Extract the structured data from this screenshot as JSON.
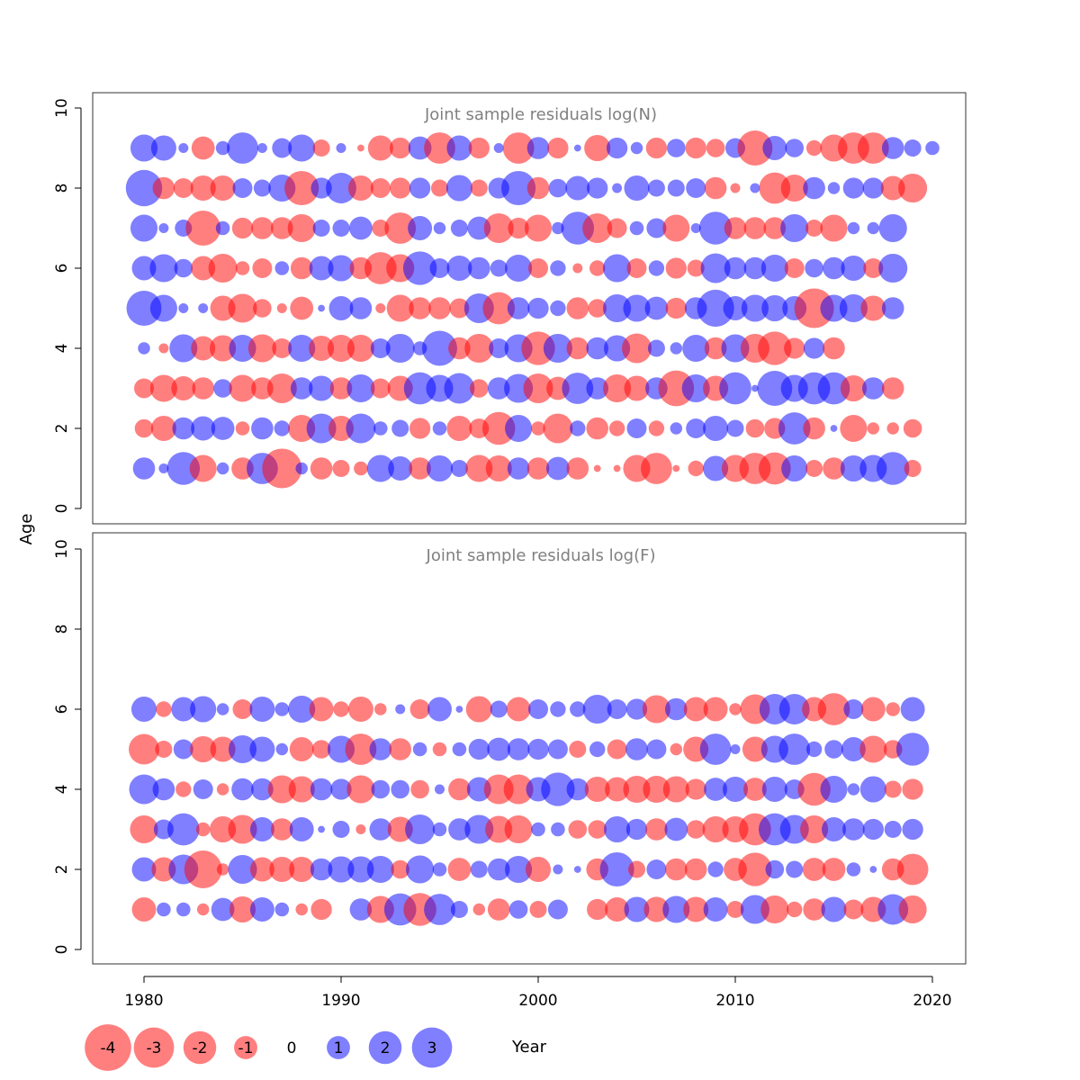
{
  "colors": {
    "negative": "#FF0000",
    "positive": "#0000FF",
    "bubble_opacity": 0.5,
    "title_color": "#808080"
  },
  "axis_labels": {
    "y": "Age",
    "x": "Year"
  },
  "x_ticks": [
    "1980",
    "1990",
    "2000",
    "2010",
    "2020"
  ],
  "y_ticks": [
    "0",
    "2",
    "4",
    "6",
    "8",
    "10"
  ],
  "legend": {
    "items": [
      {
        "label": "-4",
        "value": -4
      },
      {
        "label": "-3",
        "value": -3
      },
      {
        "label": "-2",
        "value": -2
      },
      {
        "label": "-1",
        "value": -1
      },
      {
        "label": "0",
        "value": 0
      },
      {
        "label": "1",
        "value": 1
      },
      {
        "label": "2",
        "value": 2
      },
      {
        "label": "3",
        "value": 3
      }
    ]
  },
  "chart_data": [
    {
      "type": "bubble",
      "title": "Joint sample residuals log(N)",
      "xlabel": "Year",
      "ylabel": "Age",
      "xlim": [
        1978,
        2021
      ],
      "ylim": [
        0,
        10
      ],
      "x_start": 1980,
      "ages": [
        1,
        2,
        3,
        4,
        5,
        6,
        7,
        8,
        9
      ],
      "residuals": [
        [
          1.0,
          0.2,
          2.2,
          -1.5,
          0.3,
          -1.0,
          2.0,
          -3.2,
          0.3,
          -1.0,
          -0.6,
          -0.4,
          1.5,
          1.2,
          -1.0,
          1.4,
          0.6,
          -1.5,
          -1.4,
          1.0,
          -1.0,
          1.1,
          -1.0,
          -0.1,
          -0.1,
          -1.5,
          -2.0,
          -0.1,
          -0.5,
          1.3,
          -1.5,
          -2.0,
          -2.1,
          1.4,
          -0.6,
          -1.0,
          1.4,
          1.5,
          2.2,
          -0.6
        ],
        [
          -0.7,
          -1.3,
          1.0,
          1.2,
          1.1,
          -0.4,
          1.0,
          0.5,
          -1.5,
          1.8,
          -1.3,
          1.8,
          0.4,
          0.6,
          -0.9,
          0.4,
          -1.3,
          -0.8,
          -2.2,
          1.5,
          -0.4,
          -1.8,
          0.5,
          -1.0,
          -0.5,
          0.8,
          -0.5,
          0.3,
          0.8,
          1.3,
          0.6,
          -0.7,
          -0.9,
          2.1,
          -1.0,
          0.1,
          -1.5,
          -0.3,
          -0.3,
          -0.7
        ],
        [
          -0.8,
          -1.5,
          -1.2,
          -1.0,
          0.7,
          -1.5,
          -1.0,
          -1.8,
          1.0,
          1.3,
          -1.0,
          1.6,
          -0.8,
          -1.3,
          2.1,
          1.5,
          1.9,
          -0.7,
          1.0,
          1.7,
          -1.8,
          -1.1,
          2.0,
          1.0,
          -1.6,
          -1.3,
          1.0,
          -2.6,
          1.6,
          -1.3,
          2.1,
          0.1,
          2.5,
          1.5,
          2.1,
          2.1,
          -1.4,
          1.0,
          -1.0
        ],
        [
          0.3,
          -0.2,
          1.6,
          -1.2,
          -1.4,
          1.5,
          -1.6,
          -0.8,
          1.5,
          -1.3,
          -1.5,
          -1.5,
          0.8,
          1.7,
          0.4,
          2.5,
          -1.0,
          -1.7,
          0.8,
          1.6,
          -2.3,
          1.7,
          -1.0,
          1.0,
          1.4,
          -1.8,
          0.6,
          0.3,
          1.5,
          -1.0,
          1.6,
          -1.7,
          -2.3,
          -0.9,
          0.9,
          -1.0
        ],
        [
          2.5,
          1.5,
          0.2,
          0.2,
          -1.3,
          -1.7,
          -0.7,
          -0.2,
          -1.1,
          0.1,
          1.2,
          1.0,
          -0.2,
          -1.5,
          -1.0,
          -1.0,
          -0.8,
          1.8,
          -2.1,
          1.0,
          0.9,
          0.5,
          -1.0,
          -0.7,
          1.6,
          1.5,
          1.1,
          -0.9,
          1.0,
          2.8,
          1.2,
          1.5,
          1.4,
          1.2,
          -3.2,
          1.5,
          1.6,
          -1.3,
          1.0
        ],
        [
          1.2,
          1.6,
          0.7,
          -1.2,
          -1.7,
          -0.4,
          -0.8,
          0.4,
          -1.0,
          1.2,
          1.4,
          -1.0,
          -2.1,
          -1.6,
          2.3,
          0.8,
          1.3,
          1.0,
          0.6,
          1.5,
          -0.8,
          0.5,
          -0.2,
          -0.5,
          1.6,
          -0.8,
          0.5,
          -0.9,
          -0.6,
          1.8,
          1.0,
          1.0,
          1.5,
          -0.8,
          0.7,
          1.0,
          1.3,
          -0.8,
          1.7
        ],
        [
          1.5,
          0.2,
          0.6,
          -2.5,
          0.4,
          -0.9,
          -1.0,
          -1.0,
          -1.6,
          0.6,
          0.6,
          1.1,
          -0.6,
          -2.0,
          1.2,
          0.3,
          0.6,
          1.1,
          -1.8,
          -0.9,
          -1.5,
          0.3,
          2.2,
          -1.8,
          -0.8,
          0.4,
          0.8,
          -1.5,
          0.2,
          2.2,
          -1.0,
          -1.0,
          -1.0,
          1.6,
          -0.6,
          -1.5,
          0.3,
          0.3,
          1.6
        ],
        [
          2.7,
          -1.0,
          -0.8,
          -1.3,
          -1.3,
          0.8,
          0.6,
          1.5,
          -2.4,
          0.9,
          1.9,
          -1.3,
          -0.8,
          -0.9,
          0.9,
          -0.6,
          1.4,
          -0.6,
          0.9,
          2.4,
          -1.0,
          0.7,
          1.2,
          0.9,
          0.2,
          1.3,
          0.6,
          0.6,
          0.8,
          -1.0,
          -0.2,
          0.2,
          -2.0,
          -1.5,
          1.0,
          0.3,
          0.9,
          0.9,
          -1.2,
          -1.7
        ],
        [
          1.5,
          1.3,
          0.2,
          -1.1,
          0.4,
          2.0,
          0.2,
          0.8,
          1.5,
          -0.6,
          0.2,
          -0.1,
          -1.3,
          -0.9,
          1.1,
          -2.0,
          1.3,
          -0.9,
          0.2,
          -2.0,
          1.0,
          -0.9,
          0.1,
          -1.4,
          0.9,
          0.3,
          -0.9,
          0.7,
          -0.9,
          -0.7,
          0.8,
          -2.5,
          1.2,
          0.7,
          -0.5,
          -1.5,
          -2.0,
          -2.0,
          1.0,
          0.6,
          0.4
        ]
      ]
    },
    {
      "type": "bubble",
      "title": "Joint sample residuals log(F)",
      "xlabel": "Year",
      "ylabel": "Age",
      "xlim": [
        1978,
        2021
      ],
      "ylim": [
        0,
        10
      ],
      "x_start": 1980,
      "ages": [
        1,
        2,
        3,
        4,
        5,
        6
      ],
      "residuals": [
        [
          -1.2,
          0.4,
          0.4,
          -0.3,
          1.1,
          -1.4,
          1.2,
          0.4,
          -0.3,
          -0.9,
          0.0,
          1.0,
          -1.5,
          2.1,
          -2.2,
          2.0,
          0.6,
          -0.3,
          -1.0,
          0.7,
          -0.6,
          0.8,
          0.0,
          -0.9,
          -1.2,
          1.3,
          -1.3,
          1.5,
          -1.3,
          1.2,
          -0.6,
          1.7,
          -1.6,
          -0.5,
          -1.0,
          1.3,
          -0.8,
          -1.3,
          1.9,
          -1.6
        ],
        [
          1.2,
          -1.2,
          1.8,
          -2.9,
          -0.3,
          1.7,
          -1.2,
          -1.3,
          -1.3,
          1.0,
          1.4,
          1.4,
          1.5,
          -0.7,
          1.6,
          0.4,
          -1.1,
          0.6,
          1.0,
          1.5,
          -1.3,
          0.2,
          0.1,
          -1.0,
          2.4,
          -0.6,
          0.8,
          -1.0,
          -1.0,
          0.5,
          -1.1,
          -2.3,
          0.7,
          0.6,
          -1.1,
          -1.1,
          0.4,
          0.1,
          -1.0,
          -2.0
        ],
        [
          -1.6,
          0.8,
          2.1,
          -0.4,
          -1.4,
          -1.7,
          1.2,
          -1.0,
          1.2,
          0.1,
          0.6,
          -0.2,
          1.0,
          -1.3,
          1.8,
          0.4,
          1.0,
          1.7,
          -1.5,
          -1.6,
          0.4,
          0.4,
          -0.7,
          -0.7,
          1.4,
          0.9,
          -1.0,
          1.1,
          -0.7,
          -1.4,
          -1.4,
          -2.1,
          2.1,
          1.7,
          -1.6,
          1.2,
          1.0,
          0.9,
          0.6,
          0.9
        ],
        [
          1.8,
          1.0,
          -0.5,
          0.8,
          -0.3,
          1.0,
          1.0,
          -1.6,
          -1.4,
          1.0,
          0.9,
          -1.6,
          0.7,
          0.7,
          -0.7,
          0.2,
          -1.0,
          1.2,
          -1.8,
          -1.8,
          1.2,
          2.3,
          1.0,
          -1.3,
          -1.2,
          -1.5,
          -1.5,
          -1.4,
          -0.9,
          1.1,
          1.3,
          -1.1,
          1.3,
          0.8,
          -2.2,
          1.5,
          0.3,
          1.4,
          -0.6,
          -0.9
        ],
        [
          -1.9,
          -0.6,
          0.8,
          -1.4,
          -1.3,
          1.6,
          1.3,
          0.3,
          -1.2,
          -0.7,
          1.5,
          -2.0,
          1.0,
          -1.0,
          0.4,
          -0.4,
          0.4,
          0.9,
          1.1,
          1.0,
          0.9,
          0.8,
          -0.6,
          0.5,
          -0.8,
          1.0,
          0.8,
          -0.3,
          -1.3,
          2.0,
          0.2,
          -1.3,
          1.5,
          2.0,
          0.5,
          0.7,
          1.2,
          -1.5,
          -0.7,
          2.2
        ],
        [
          1.3,
          -0.5,
          1.2,
          1.4,
          0.3,
          -0.8,
          1.3,
          0.4,
          1.5,
          -1.2,
          -0.5,
          -1.3,
          -0.3,
          0.2,
          -0.8,
          1.2,
          0.1,
          -1.4,
          0.6,
          -1.2,
          0.8,
          0.5,
          0.5,
          1.7,
          0.8,
          0.9,
          -1.6,
          1.0,
          -1.2,
          -1.2,
          -0.3,
          -1.8,
          1.9,
          1.9,
          -1.2,
          -2.1,
          0.8,
          -1.2,
          -0.4,
          1.2
        ]
      ]
    }
  ]
}
